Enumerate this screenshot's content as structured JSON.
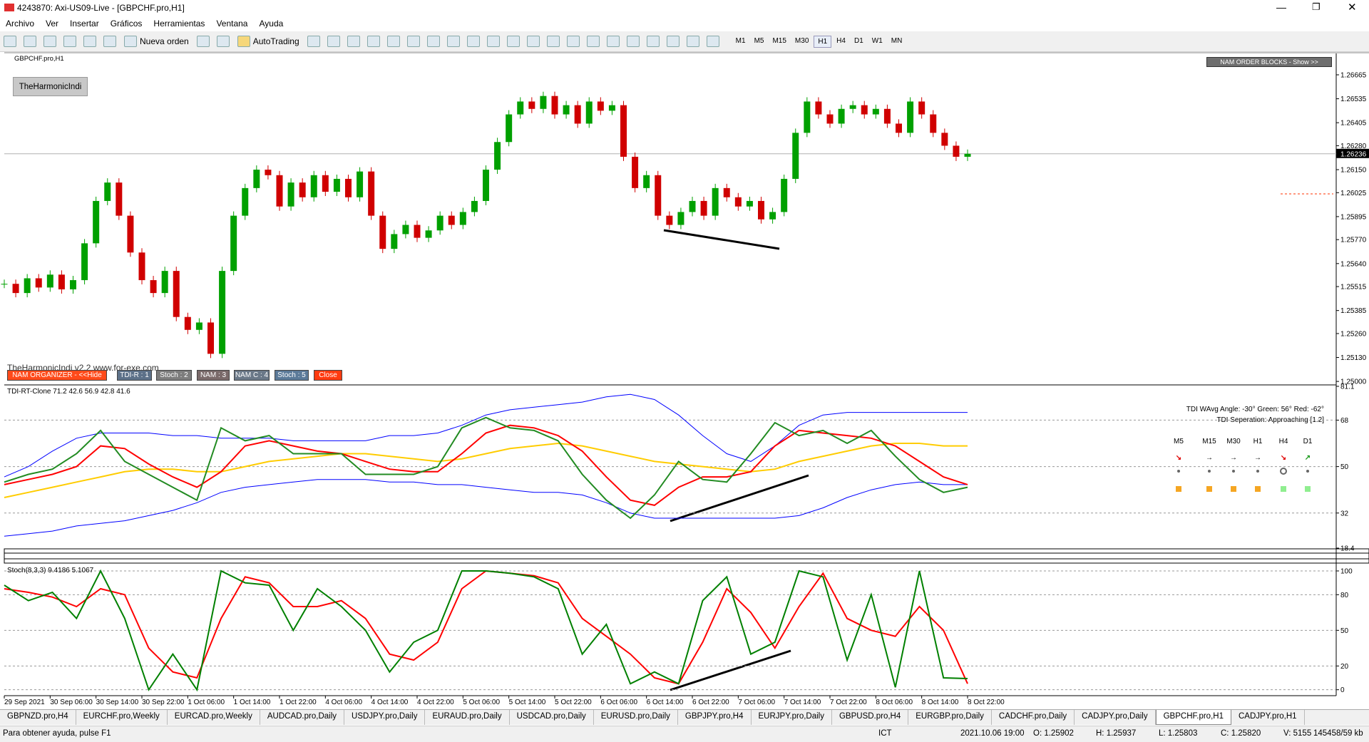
{
  "window": {
    "title": "4243870: Axi-US09-Live - [GBPCHF.pro,H1]"
  },
  "menu": [
    "Archivo",
    "Ver",
    "Insertar",
    "Gráficos",
    "Herramientas",
    "Ventana",
    "Ayuda"
  ],
  "toolbar": {
    "new_order": "Nueva orden",
    "autotrading": "AutoTrading",
    "timeframes": [
      "M1",
      "M5",
      "M15",
      "M30",
      "H1",
      "H4",
      "D1",
      "W1",
      "MN"
    ],
    "active_timeframe": 4
  },
  "chart_overlay": {
    "harmonic_button": "TheHarmonicIndi",
    "order_blocks": "NAM ORDER BLOCKS - Show >>",
    "watermark": "TheHarmonicIndi v2.2 www.for-exe.com",
    "buttons": [
      {
        "label": "NAM ORGANIZER - <<Hide",
        "color": "#ff4a1a"
      },
      {
        "label": "TDI-R : 1",
        "color": "#5d7189"
      },
      {
        "label": "Stoch : 2",
        "color": "#7d7d7d"
      },
      {
        "label": "NAM  : 3",
        "color": "#7a6a6a"
      },
      {
        "label": "NAM C : 4",
        "color": "#6a7888"
      },
      {
        "label": "Stoch : 5",
        "color": "#5b7a99"
      },
      {
        "label": "Close",
        "color": "#ff3b10"
      }
    ]
  },
  "tdi_info": {
    "angle": "TDI WAvg Angle: -30°  Green: 56°  Red: -62°",
    "separation": "TDI Seperation: Approaching [1.2]",
    "timeframes": [
      {
        "label": "M5",
        "arrow": "↘",
        "arrow_color": "#e00000",
        "square_color": "#f5a623"
      },
      {
        "label": "M15",
        "arrow": "→",
        "arrow_color": "#000000",
        "square_color": "#f5a623"
      },
      {
        "label": "M30",
        "arrow": "→",
        "arrow_color": "#000000",
        "square_color": "#f5a623"
      },
      {
        "label": "H1",
        "arrow": "→",
        "arrow_color": "#000000",
        "square_color": "#f5a623"
      },
      {
        "label": "H4",
        "arrow": "↘",
        "arrow_color": "#e00000",
        "square_color": "#90ee90"
      },
      {
        "label": "D1",
        "arrow": "↗",
        "arrow_color": "#1a9a1a",
        "square_color": "#90ee90"
      }
    ]
  },
  "time_axis": [
    "29 Sep 2021",
    "30 Sep 06:00",
    "30 Sep 14:00",
    "30 Sep 22:00",
    "1 Oct 06:00",
    "1 Oct 14:00",
    "1 Oct 22:00",
    "4 Oct 06:00",
    "4 Oct 14:00",
    "4 Oct 22:00",
    "5 Oct 06:00",
    "5 Oct 14:00",
    "5 Oct 22:00",
    "6 Oct 06:00",
    "6 Oct 14:00",
    "6 Oct 22:00",
    "7 Oct 06:00",
    "7 Oct 14:00",
    "7 Oct 22:00",
    "8 Oct 06:00",
    "8 Oct 14:00",
    "8 Oct 22:00"
  ],
  "chart_data": [
    {
      "type": "candlestick",
      "title": "GBPCHF.pro,H1",
      "up_color": "#00a000",
      "down_color": "#d00000",
      "current_price": 1.26236,
      "values": [
        1.2553,
        1.2548,
        1.2556,
        1.2551,
        1.2558,
        1.255,
        1.2555,
        1.2575,
        1.2598,
        1.2608,
        1.259,
        1.257,
        1.2555,
        1.2548,
        1.256,
        1.2535,
        1.2528,
        1.2532,
        1.2515,
        1.256,
        1.259,
        1.2605,
        1.2615,
        1.2612,
        1.2595,
        1.2608,
        1.26,
        1.2612,
        1.2603,
        1.261,
        1.26,
        1.2614,
        1.259,
        1.2572,
        1.258,
        1.2585,
        1.2578,
        1.2582,
        1.259,
        1.2585,
        1.2592,
        1.2598,
        1.2615,
        1.263,
        1.2645,
        1.2652,
        1.2648,
        1.2655,
        1.2645,
        1.265,
        1.264,
        1.2652,
        1.2647,
        1.265,
        1.2622,
        1.2605,
        1.2612,
        1.259,
        1.2585,
        1.2592,
        1.2598,
        1.259,
        1.2605,
        1.26,
        1.2595,
        1.2598,
        1.2588,
        1.2592,
        1.261,
        1.2635,
        1.2652,
        1.2645,
        1.264,
        1.2648,
        1.265,
        1.2645,
        1.2648,
        1.264,
        1.2635,
        1.2652,
        1.2645,
        1.2635,
        1.2628,
        1.2622,
        1.26236
      ],
      "ylim": [
        1.24985,
        1.26781
      ],
      "yticks": [
        1.26665,
        1.26535,
        1.26405,
        {
          "value": 1.2628,
          "label": "1.26280"
        },
        {
          "value": 1.2615,
          "label": "1.26150"
        },
        1.26025,
        1.25895,
        {
          "value": 1.2577,
          "label": "1.25770"
        },
        {
          "value": 1.2564,
          "label": "1.25640"
        },
        1.25515,
        1.25385,
        {
          "value": 1.2526,
          "label": "1.25260"
        },
        {
          "value": 1.2513,
          "label": "1.25130"
        },
        {
          "value": 1.25,
          "label": "1.25000"
        }
      ]
    },
    {
      "type": "line",
      "title": "TDI-RT-Clone 71.2 42.6 56.9 42.8 41.6",
      "ylim": [
        18.4,
        81.1
      ],
      "yticks": [
        81.1,
        68,
        50,
        32,
        18.4
      ],
      "series": [
        {
          "color": "#0000ff",
          "width": 1,
          "values": [
            46,
            50,
            56,
            61,
            63,
            63,
            63,
            62,
            62,
            61,
            61,
            61,
            60,
            60,
            60,
            60,
            62,
            62,
            63,
            66,
            70,
            72,
            73,
            74,
            75,
            77,
            78,
            76,
            70,
            62,
            55,
            52,
            58,
            66,
            70,
            71,
            71,
            71,
            71,
            71,
            71
          ]
        },
        {
          "color": "#0000ff",
          "width": 1,
          "values": [
            23,
            24,
            25,
            27,
            28,
            29,
            31,
            33,
            36,
            40,
            42,
            43,
            44,
            45,
            45,
            45,
            44,
            44,
            43,
            43,
            42,
            41,
            40,
            40,
            39,
            36,
            32,
            30,
            30,
            30,
            30,
            30,
            30,
            31,
            34,
            38,
            41,
            43,
            44,
            43,
            43
          ]
        },
        {
          "color": "#ffcc00",
          "width": 2,
          "values": [
            38,
            40,
            42,
            44,
            46,
            48,
            49,
            49,
            48,
            48,
            50,
            52,
            53,
            54,
            55,
            55,
            54,
            53,
            52,
            53,
            55,
            57,
            58,
            59,
            58,
            56,
            54,
            52,
            51,
            50,
            49,
            48,
            49,
            52,
            54,
            56,
            58,
            59,
            59,
            58,
            58
          ]
        },
        {
          "color": "#ff0000",
          "width": 2,
          "values": [
            43,
            45,
            47,
            50,
            58,
            57,
            51,
            46,
            42,
            48,
            58,
            60,
            58,
            56,
            55,
            52,
            49,
            48,
            48,
            55,
            63,
            66,
            65,
            62,
            56,
            46,
            37,
            35,
            42,
            46,
            46,
            48,
            58,
            64,
            63,
            62,
            61,
            58,
            52,
            46,
            43
          ]
        },
        {
          "color": "#228b22",
          "width": 2,
          "values": [
            44,
            47,
            49,
            55,
            64,
            52,
            47,
            42,
            37,
            65,
            60,
            62,
            55,
            55,
            55,
            47,
            47,
            47,
            50,
            65,
            69,
            65,
            64,
            60,
            47,
            37,
            30,
            39,
            52,
            45,
            44,
            55,
            67,
            62,
            64,
            59,
            64,
            54,
            45,
            40,
            42
          ]
        }
      ]
    },
    {
      "type": "line",
      "title": "Stoch(8,3,3) 9.4186 5.1067",
      "ylim": [
        -5,
        104.8
      ],
      "yticks": [
        100,
        80,
        50,
        20,
        0
      ],
      "series": [
        {
          "color": "#ff0000",
          "width": 2,
          "values": [
            85,
            82,
            78,
            70,
            85,
            80,
            35,
            15,
            10,
            60,
            95,
            90,
            70,
            70,
            75,
            60,
            30,
            25,
            40,
            85,
            100,
            98,
            96,
            90,
            60,
            45,
            30,
            10,
            5,
            40,
            85,
            65,
            35,
            70,
            98,
            60,
            50,
            45,
            70,
            50,
            5.1067
          ]
        },
        {
          "color": "#008000",
          "width": 2,
          "values": [
            88,
            75,
            82,
            60,
            100,
            60,
            0,
            30,
            0,
            100,
            90,
            88,
            50,
            85,
            70,
            50,
            15,
            40,
            50,
            100,
            100,
            98,
            95,
            85,
            30,
            55,
            5,
            15,
            5,
            75,
            95,
            30,
            40,
            100,
            95,
            25,
            80,
            2,
            100,
            10,
            9.4186
          ]
        }
      ]
    }
  ],
  "tabs": {
    "items": [
      "GBPNZD.pro,H4",
      "EURCHF.pro,Weekly",
      "EURCAD.pro,Weekly",
      "AUDCAD.pro,Daily",
      "USDJPY.pro,Daily",
      "EURAUD.pro,Daily",
      "USDCAD.pro,Daily",
      "EURUSD.pro,Daily",
      "GBPJPY.pro,H4",
      "EURJPY.pro,Daily",
      "GBPUSD.pro,H4",
      "EURGBP.pro,Daily",
      "CADCHF.pro,Daily",
      "CADJPY.pro,Daily",
      "GBPCHF.pro,H1",
      "CADJPY.pro,H1"
    ],
    "active": 14
  },
  "status": {
    "help": "Para obtener ayuda, pulse F1",
    "profile": "ICT",
    "time": "2021.10.06 19:00",
    "open": "O: 1.25902",
    "high": "H: 1.25937",
    "low": "L: 1.25803",
    "close": "C: 1.25820",
    "volume": "V: 5155",
    "traffic": "145458/59 kb"
  }
}
